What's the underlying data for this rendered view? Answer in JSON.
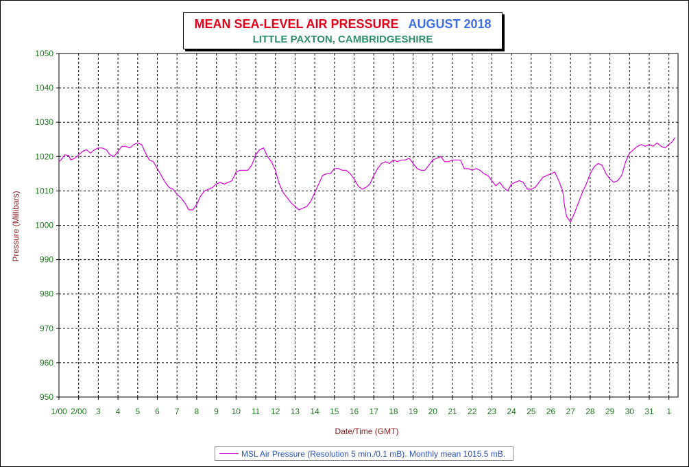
{
  "title": {
    "main": "MEAN SEA-LEVEL AIR PRESSURE",
    "month": "AUGUST 2018",
    "subtitle": "LITTLE PAXTON, CAMBRIDGESHIRE"
  },
  "colors": {
    "title_main": "#e0001a",
    "title_month": "#3d6ee8",
    "subtitle": "#2f8f6a",
    "tick_labels": "#1d7a1d",
    "axis_labels": "#8b1a1a",
    "series_line": "#d400d4",
    "grid": "#000000"
  },
  "chart_data": {
    "type": "line",
    "title": "MEAN SEA-LEVEL AIR PRESSURE AUGUST 2018",
    "subtitle": "LITTLE PAXTON, CAMBRIDGESHIRE",
    "xlabel": "Date/Time (GMT)",
    "ylabel": "Pressure (Millibars)",
    "ylim": [
      950,
      1050
    ],
    "yticks": [
      950,
      960,
      970,
      980,
      990,
      1000,
      1010,
      1020,
      1030,
      1040,
      1050
    ],
    "xlim": [
      1,
      32.3
    ],
    "xticks": [
      {
        "day": 1,
        "label": "1/00"
      },
      {
        "day": 2,
        "label": "2/00"
      },
      {
        "day": 3,
        "label": "3"
      },
      {
        "day": 4,
        "label": "4"
      },
      {
        "day": 5,
        "label": "5"
      },
      {
        "day": 6,
        "label": "6"
      },
      {
        "day": 7,
        "label": "7"
      },
      {
        "day": 8,
        "label": "8"
      },
      {
        "day": 9,
        "label": "9"
      },
      {
        "day": 10,
        "label": "10"
      },
      {
        "day": 11,
        "label": "11"
      },
      {
        "day": 12,
        "label": "12"
      },
      {
        "day": 13,
        "label": "13"
      },
      {
        "day": 14,
        "label": "14"
      },
      {
        "day": 15,
        "label": "15"
      },
      {
        "day": 16,
        "label": "16"
      },
      {
        "day": 17,
        "label": "17"
      },
      {
        "day": 18,
        "label": "18"
      },
      {
        "day": 19,
        "label": "19"
      },
      {
        "day": 20,
        "label": "20"
      },
      {
        "day": 21,
        "label": "21"
      },
      {
        "day": 22,
        "label": "22"
      },
      {
        "day": 23,
        "label": "23"
      },
      {
        "day": 24,
        "label": "24"
      },
      {
        "day": 25,
        "label": "25"
      },
      {
        "day": 26,
        "label": "26"
      },
      {
        "day": 27,
        "label": "27"
      },
      {
        "day": 28,
        "label": "28"
      },
      {
        "day": 29,
        "label": "29"
      },
      {
        "day": 30,
        "label": "30"
      },
      {
        "day": 31,
        "label": "31"
      },
      {
        "day": 32,
        "label": "1"
      }
    ],
    "grid": true,
    "legend_position": "bottom-center",
    "series": [
      {
        "name": "MSL Air Pressure (Resolution 5 min./0.1 mB). Monthly mean 1015.5 mB.",
        "x": [
          1.0,
          1.1,
          1.3,
          1.5,
          1.6,
          1.8,
          2.0,
          2.2,
          2.4,
          2.6,
          2.8,
          3.0,
          3.2,
          3.4,
          3.6,
          3.8,
          4.0,
          4.2,
          4.4,
          4.6,
          4.8,
          5.0,
          5.2,
          5.4,
          5.6,
          5.8,
          6.0,
          6.2,
          6.4,
          6.6,
          6.8,
          7.0,
          7.2,
          7.4,
          7.6,
          7.8,
          8.0,
          8.2,
          8.4,
          8.6,
          8.8,
          9.0,
          9.2,
          9.4,
          9.6,
          9.8,
          10.0,
          10.2,
          10.4,
          10.6,
          10.8,
          11.0,
          11.2,
          11.4,
          11.6,
          11.8,
          12.0,
          12.2,
          12.4,
          12.6,
          12.8,
          13.0,
          13.2,
          13.4,
          13.6,
          13.8,
          14.0,
          14.2,
          14.4,
          14.6,
          14.8,
          15.0,
          15.2,
          15.4,
          15.6,
          15.8,
          16.0,
          16.2,
          16.4,
          16.6,
          16.8,
          17.0,
          17.2,
          17.4,
          17.6,
          17.8,
          18.0,
          18.2,
          18.4,
          18.6,
          18.8,
          19.0,
          19.2,
          19.4,
          19.6,
          19.8,
          20.0,
          20.2,
          20.4,
          20.6,
          20.8,
          21.0,
          21.2,
          21.4,
          21.6,
          21.8,
          22.0,
          22.2,
          22.4,
          22.6,
          22.8,
          23.0,
          23.2,
          23.4,
          23.6,
          23.8,
          24.0,
          24.2,
          24.4,
          24.6,
          24.8,
          25.0,
          25.2,
          25.4,
          25.6,
          25.8,
          26.0,
          26.2,
          26.4,
          26.6,
          26.7,
          26.8,
          27.0,
          27.2,
          27.4,
          27.6,
          27.8,
          28.0,
          28.2,
          28.4,
          28.6,
          28.8,
          29.0,
          29.2,
          29.4,
          29.6,
          29.8,
          30.0,
          30.2,
          30.4,
          30.6,
          30.8,
          31.0,
          31.2,
          31.4,
          31.6,
          31.8,
          32.0,
          32.2,
          32.3
        ],
        "y": [
          1018.5,
          1019.0,
          1020.5,
          1020.3,
          1019.0,
          1019.5,
          1020.5,
          1021.5,
          1022.0,
          1021.0,
          1022.0,
          1022.5,
          1022.5,
          1022.0,
          1020.5,
          1020.0,
          1021.5,
          1023.0,
          1023.0,
          1022.5,
          1023.5,
          1024.0,
          1023.5,
          1021.0,
          1019.0,
          1018.5,
          1016.5,
          1014.5,
          1012.5,
          1011.0,
          1010.5,
          1009.0,
          1008.0,
          1006.5,
          1004.5,
          1004.5,
          1006.0,
          1008.5,
          1010.0,
          1010.5,
          1011.0,
          1012.0,
          1012.5,
          1012.0,
          1012.5,
          1013.0,
          1015.5,
          1016.0,
          1016.0,
          1016.0,
          1017.5,
          1020.5,
          1022.0,
          1022.5,
          1020.0,
          1018.5,
          1016.0,
          1012.0,
          1009.5,
          1008.0,
          1006.5,
          1005.5,
          1004.5,
          1005.0,
          1005.5,
          1007.0,
          1009.5,
          1012.0,
          1014.5,
          1015.0,
          1015.0,
          1016.5,
          1016.5,
          1016.0,
          1016.0,
          1015.0,
          1013.5,
          1011.5,
          1010.5,
          1011.0,
          1012.0,
          1014.5,
          1016.5,
          1018.0,
          1018.5,
          1018.0,
          1019.0,
          1018.5,
          1019.0,
          1019.0,
          1019.5,
          1018.0,
          1016.5,
          1016.0,
          1016.0,
          1017.5,
          1019.0,
          1019.5,
          1020.0,
          1018.5,
          1018.5,
          1019.0,
          1019.0,
          1019.0,
          1016.5,
          1016.5,
          1016.0,
          1016.5,
          1016.0,
          1015.0,
          1014.5,
          1013.0,
          1011.5,
          1012.5,
          1011.0,
          1010.0,
          1012.0,
          1012.5,
          1013.0,
          1012.5,
          1010.5,
          1010.5,
          1011.0,
          1012.5,
          1014.0,
          1014.5,
          1015.0,
          1015.5,
          1013.0,
          1010.0,
          1005.5,
          1002.5,
          1001.0,
          1003.5,
          1006.5,
          1009.5,
          1012.0,
          1015.0,
          1017.0,
          1018.0,
          1017.5,
          1015.0,
          1013.5,
          1012.5,
          1013.0,
          1014.5,
          1018.5,
          1021.0,
          1022.0,
          1023.0,
          1023.5,
          1023.0,
          1023.5,
          1023.0,
          1024.0,
          1023.0,
          1022.5,
          1023.5,
          1024.5,
          1025.5
        ]
      }
    ]
  }
}
